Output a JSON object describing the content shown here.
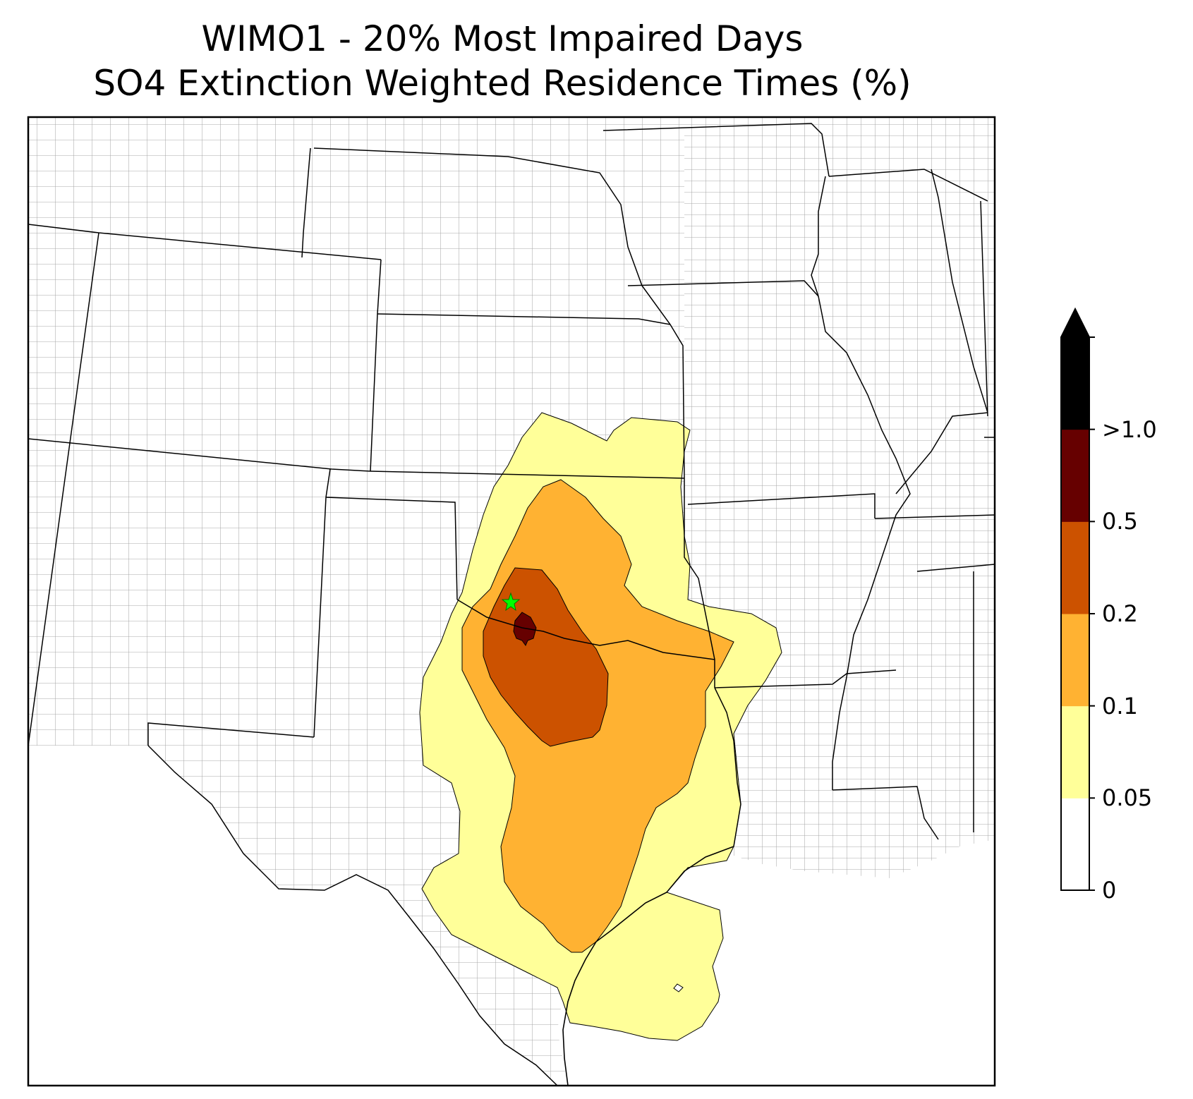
{
  "title": {
    "line1": "WIMO1 - 20% Most Impaired Days",
    "line2": "SO4 Extinction Weighted Residence Times (%)"
  },
  "map": {
    "receptor_site": "WIMO1",
    "receptor_marker": "green star",
    "contour_levels": [
      {
        "range": "0.05-0.1",
        "color": "#ffff99"
      },
      {
        "range": "0.1-0.2",
        "color": "#ffb232"
      },
      {
        "range": "0.2-0.5",
        "color": "#cc5200"
      },
      {
        "range": "0.5-1.0",
        "color": "#660000"
      }
    ]
  },
  "colorbar": {
    "ticks": [
      "0",
      "0.05",
      "0.1",
      "0.2",
      "0.5",
      ">1.0"
    ],
    "bins": [
      {
        "from": "0",
        "to": "0.05",
        "color": "#ffffff"
      },
      {
        "from": "0.05",
        "to": "0.1",
        "color": "#ffff99"
      },
      {
        "from": "0.1",
        "to": "0.2",
        "color": "#ffb232"
      },
      {
        "from": "0.2",
        "to": "0.5",
        "color": "#cc5200"
      },
      {
        "from": "0.5",
        "to": "1.0",
        "color": "#660000"
      },
      {
        "from": "1.0",
        "to": "",
        "color": "#000000"
      }
    ],
    "extend": "max"
  }
}
